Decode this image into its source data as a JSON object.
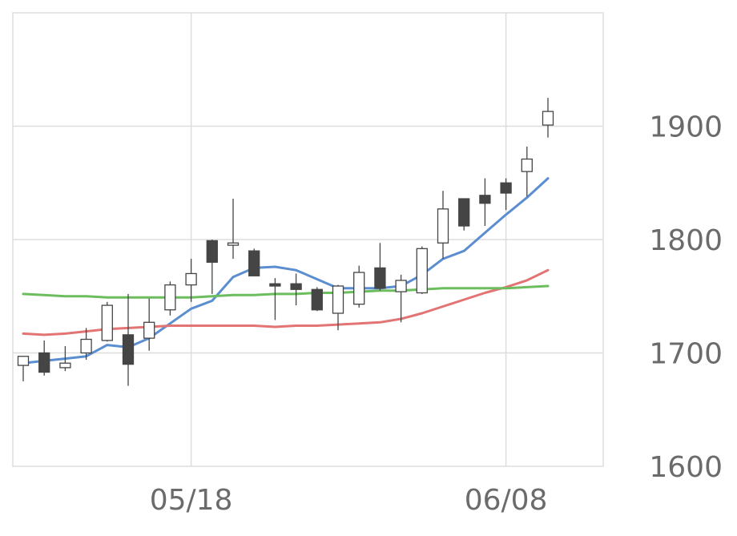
{
  "chart_data": {
    "type": "candlestick",
    "x_ticks": [
      {
        "label": "05/18",
        "index": 8
      },
      {
        "label": "06/08",
        "index": 23
      }
    ],
    "y_ticks": [
      1600,
      1700,
      1800,
      1900
    ],
    "ylim": [
      1600,
      2000
    ],
    "grid": true,
    "colors": {
      "up_fill": "#ffffff",
      "down_fill": "#454545",
      "candle_stroke": "#454545",
      "ma_short": "#5b8ed0",
      "ma_mid": "#e27474",
      "ma_long": "#6cbd5e",
      "grid": "#dddddd"
    },
    "candles": [
      {
        "o": 1689,
        "h": 1697,
        "l": 1675,
        "c": 1697
      },
      {
        "o": 1700,
        "h": 1711,
        "l": 1680,
        "c": 1683
      },
      {
        "o": 1687,
        "h": 1706,
        "l": 1684,
        "c": 1691
      },
      {
        "o": 1700,
        "h": 1722,
        "l": 1694,
        "c": 1712
      },
      {
        "o": 1711,
        "h": 1745,
        "l": 1710,
        "c": 1742
      },
      {
        "o": 1716,
        "h": 1752,
        "l": 1671,
        "c": 1690
      },
      {
        "o": 1713,
        "h": 1748,
        "l": 1702,
        "c": 1727
      },
      {
        "o": 1738,
        "h": 1763,
        "l": 1733,
        "c": 1760
      },
      {
        "o": 1760,
        "h": 1783,
        "l": 1745,
        "c": 1770
      },
      {
        "o": 1799,
        "h": 1800,
        "l": 1752,
        "c": 1780
      },
      {
        "o": 1795,
        "h": 1836,
        "l": 1783,
        "c": 1797
      },
      {
        "o": 1790,
        "h": 1792,
        "l": 1768,
        "c": 1768
      },
      {
        "o": 1761,
        "h": 1766,
        "l": 1729,
        "c": 1759
      },
      {
        "o": 1761,
        "h": 1770,
        "l": 1742,
        "c": 1756
      },
      {
        "o": 1756,
        "h": 1758,
        "l": 1737,
        "c": 1738
      },
      {
        "o": 1735,
        "h": 1760,
        "l": 1720,
        "c": 1759
      },
      {
        "o": 1743,
        "h": 1777,
        "l": 1740,
        "c": 1771
      },
      {
        "o": 1775,
        "h": 1797,
        "l": 1755,
        "c": 1757
      },
      {
        "o": 1754,
        "h": 1769,
        "l": 1727,
        "c": 1764
      },
      {
        "o": 1753,
        "h": 1794,
        "l": 1752,
        "c": 1792
      },
      {
        "o": 1797,
        "h": 1843,
        "l": 1783,
        "c": 1827
      },
      {
        "o": 1836,
        "h": 1836,
        "l": 1808,
        "c": 1812
      },
      {
        "o": 1839,
        "h": 1854,
        "l": 1812,
        "c": 1832
      },
      {
        "o": 1850,
        "h": 1854,
        "l": 1826,
        "c": 1841
      },
      {
        "o": 1860,
        "h": 1882,
        "l": 1838,
        "c": 1871
      },
      {
        "o": 1901,
        "h": 1925,
        "l": 1890,
        "c": 1913
      }
    ],
    "series": [
      {
        "key": "ma_short",
        "values": [
          1691,
          1693,
          1695,
          1697,
          1707,
          1705,
          1713,
          1726,
          1739,
          1746,
          1767,
          1775,
          1776,
          1773,
          1765,
          1757,
          1757,
          1757,
          1759,
          1769,
          1783,
          1790,
          1806,
          1822,
          1837,
          1854
        ]
      },
      {
        "key": "ma_mid",
        "values": [
          1717,
          1716,
          1717,
          1719,
          1721,
          1722,
          1723,
          1724,
          1724,
          1724,
          1724,
          1724,
          1723,
          1724,
          1724,
          1725,
          1726,
          1727,
          1730,
          1735,
          1741,
          1747,
          1753,
          1758,
          1764,
          1773
        ]
      },
      {
        "key": "ma_long",
        "values": [
          1752,
          1751,
          1750,
          1750,
          1749,
          1749,
          1749,
          1749,
          1749,
          1750,
          1751,
          1751,
          1752,
          1752,
          1753,
          1753,
          1754,
          1755,
          1755,
          1756,
          1757,
          1757,
          1757,
          1757,
          1758,
          1759
        ]
      }
    ]
  }
}
